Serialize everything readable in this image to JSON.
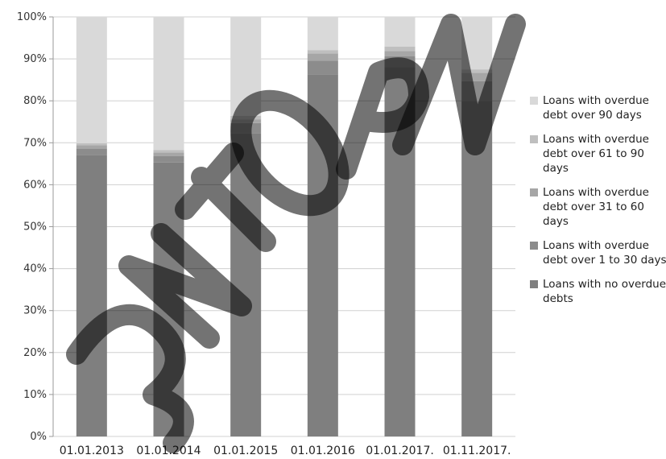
{
  "chart_data": {
    "type": "bar",
    "stacked": true,
    "categories": [
      "01.01.2013",
      "01.01.2014",
      "01.01.2015",
      "01.01.2016",
      "01.01.2017.",
      "01.11.2017."
    ],
    "series": [
      {
        "name": "Loans with no overdue debts",
        "color": "#7f7f7f",
        "values": [
          67,
          65.3,
          72.3,
          86.3,
          88,
          80
        ]
      },
      {
        "name": "Loans with overdue debt over 1 to 30 days",
        "color": "#8c8c8c",
        "values": [
          1.6,
          1.5,
          2.4,
          3.3,
          2.6,
          4.7
        ]
      },
      {
        "name": "Loans with overdue debt over 31 to 60 days",
        "color": "#a6a6a6",
        "values": [
          0.8,
          0.9,
          0.9,
          1.7,
          1.3,
          2.0
        ]
      },
      {
        "name": "Loans with overdue debt over 61 to 90 days",
        "color": "#bfbfbf",
        "values": [
          0.5,
          0.6,
          0.8,
          0.8,
          1.0,
          0.8
        ]
      },
      {
        "name": "Loans with overdue debt over 90 days",
        "color": "#d9d9d9",
        "values": [
          30.1,
          31.7,
          23.6,
          7.9,
          7.1,
          12.5
        ]
      }
    ],
    "y_ticks": [
      "0%",
      "10%",
      "20%",
      "30%",
      "40%",
      "50%",
      "60%",
      "70%",
      "80%",
      "90%",
      "100%"
    ],
    "ylim": [
      0,
      100
    ],
    "grid": true,
    "legend_position": "right",
    "legend_order": [
      4,
      3,
      2,
      1,
      0
    ]
  }
}
